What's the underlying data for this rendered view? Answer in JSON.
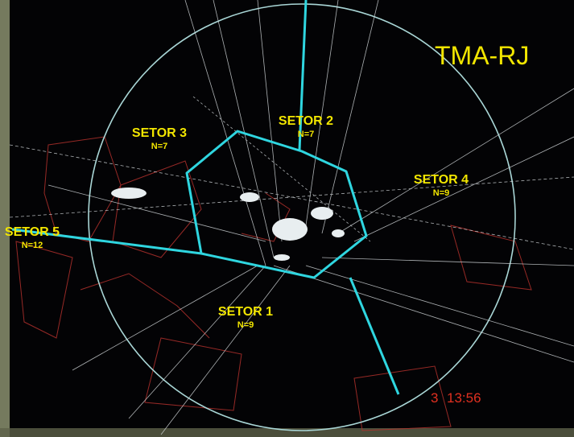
{
  "title": "TMA-RJ",
  "sectors": [
    {
      "name": "SETOR 3",
      "count": "N=7"
    },
    {
      "name": "SETOR 2",
      "count": "N=7"
    },
    {
      "name": "SETOR 4",
      "count": "N=9"
    },
    {
      "name": "SETOR 5",
      "count": "N=12"
    },
    {
      "name": "SETOR 1",
      "count": "N=9"
    }
  ],
  "clock": {
    "day": "3",
    "time": "13:56"
  }
}
